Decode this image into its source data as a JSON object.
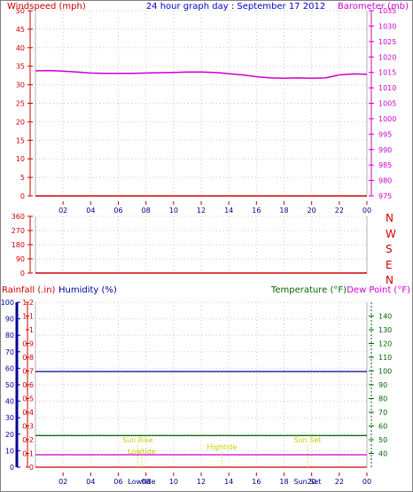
{
  "chart_data": [
    {
      "type": "line",
      "title": "24 hour graph day : September 17 2012",
      "ylabel_left": "Windspeed (mph)",
      "ylabel_right": "Barometer (mb)",
      "x_tick_labels": [
        "02",
        "04",
        "06",
        "08",
        "10",
        "12",
        "14",
        "16",
        "18",
        "20",
        "22",
        "00"
      ],
      "left_axis": {
        "ylim": [
          0,
          50
        ],
        "ticks": [
          "0",
          "5",
          "10",
          "15",
          "20",
          "25",
          "30",
          "35",
          "40",
          "45",
          "50"
        ]
      },
      "right_axis": {
        "ylim": [
          975,
          1035
        ],
        "ticks": [
          "975",
          "980",
          "985",
          "990",
          "995",
          "1000",
          "1005",
          "1010",
          "1015",
          "1020",
          "1025",
          "1030",
          "1035"
        ]
      },
      "grid": true,
      "series": [
        {
          "name": "Barometer (mb)",
          "axis": "right",
          "color": "#cc00cc",
          "x": [
            0,
            1,
            2,
            3,
            4,
            5,
            6,
            7,
            8,
            9,
            10,
            11,
            12,
            13,
            14,
            15,
            16,
            17,
            18,
            19,
            20,
            21,
            22,
            23,
            24
          ],
          "y": [
            1015.5,
            1015.6,
            1015.4,
            1015.1,
            1014.8,
            1014.7,
            1014.7,
            1014.7,
            1014.8,
            1014.9,
            1015.0,
            1015.1,
            1015.1,
            1015.0,
            1014.6,
            1014.2,
            1013.6,
            1013.2,
            1013.1,
            1013.2,
            1013.1,
            1013.2,
            1014.2,
            1014.5,
            1014.4
          ]
        },
        {
          "name": "Windspeed (mph)",
          "axis": "left",
          "color": "#cc0000",
          "x": [
            0,
            24
          ],
          "y": [
            0,
            0
          ]
        }
      ]
    },
    {
      "type": "line",
      "left_axis": {
        "ylim": [
          0,
          360
        ],
        "ticks": [
          "0",
          "90",
          "180",
          "270",
          "360"
        ]
      },
      "right_labels": [
        "N",
        "W",
        "S",
        "E",
        "N"
      ],
      "grid": true,
      "series": [
        {
          "name": "Wind direction",
          "axis": "left",
          "color": "#cc0000",
          "x": [
            0,
            24
          ],
          "y": [
            0,
            0
          ]
        }
      ]
    },
    {
      "type": "line",
      "labels": {
        "rain": "Rainfall (.in)",
        "humidity": "Humidity (%)",
        "temperature": "Temperature (°F)",
        "dew_point": "Dew Point (°F)"
      },
      "rain_axis": {
        "ylim": [
          0,
          1.2
        ],
        "ticks": [
          "0",
          "0.1",
          "0.2",
          "0.3",
          "0.4",
          "0.5",
          "0.6",
          "0.7",
          "0.8",
          "0.9",
          "1",
          "1.1",
          "1.2"
        ]
      },
      "humidity_axis": {
        "ylim": [
          0,
          100
        ],
        "ticks": [
          "0",
          "10",
          "20",
          "30",
          "40",
          "50",
          "60",
          "70",
          "80",
          "90",
          "100"
        ]
      },
      "temperature_axis": {
        "ylim": [
          30,
          150
        ],
        "ticks": [
          "40",
          "50",
          "60",
          "70",
          "80",
          "90",
          "100",
          "110",
          "120",
          "130",
          "140"
        ]
      },
      "x_tick_labels": [
        "02",
        "04",
        "06",
        "08",
        "10",
        "12",
        "14",
        "16",
        "18",
        "20",
        "22",
        "00"
      ],
      "grid": true,
      "series": [
        {
          "name": "Humidity (%)",
          "axis": "humidity",
          "color": "#000099",
          "x": [
            0,
            24
          ],
          "y": [
            58,
            58
          ]
        },
        {
          "name": "Temperature (°F)",
          "axis": "temperature",
          "color": "#006600",
          "x": [
            0,
            24
          ],
          "y": [
            53,
            53
          ]
        },
        {
          "name": "Dew Point (°F)",
          "axis": "temperature",
          "color": "#cc00cc",
          "x": [
            0,
            24
          ],
          "y": [
            39,
            39
          ]
        },
        {
          "name": "Rainfall (.in)",
          "axis": "rain",
          "color": "#cc0000",
          "x": [
            0,
            24
          ],
          "y": [
            0,
            0
          ]
        }
      ],
      "events": [
        {
          "label": "Sun Rise",
          "hour": 7.4
        },
        {
          "label": "Lowtide",
          "hour": 7.7
        },
        {
          "label": "Hightide",
          "hour": 13.5
        },
        {
          "label": "Sun Set",
          "hour": 19.7
        }
      ],
      "bottom_event_labels": [
        "Lowtide",
        "Sun Set"
      ]
    }
  ],
  "colors": {
    "frame": "#808080",
    "grid": "#c8c8c8",
    "wind": "#cc0000",
    "title": "#0000cc",
    "barometer": "#cc00cc",
    "humidity": "#000099",
    "temperature": "#006600",
    "dew_point": "#cc00cc",
    "event": "#cccc00"
  }
}
